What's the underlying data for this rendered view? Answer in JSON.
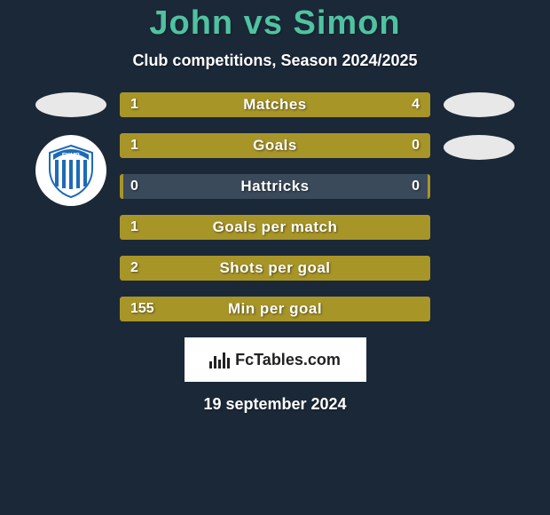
{
  "title": "John vs Simon",
  "subtitle": "Club competitions, Season 2024/2025",
  "footer_logo_text": "FcTables.com",
  "date": "19 september 2024",
  "colors": {
    "background": "#1b2838",
    "title": "#4fc3a1",
    "bar_fill": "#a89528",
    "bar_bg": "#3a4a5a",
    "text": "#ffffff",
    "footer_bg": "#ffffff",
    "footer_text": "#222222",
    "ellipse": "#e8e8e8",
    "badge_blue": "#1e6bb8",
    "badge_white": "#ffffff"
  },
  "left_badges": {
    "ellipse": true,
    "club": "FKMB"
  },
  "right_badges": {
    "ellipse1": true,
    "ellipse2": true
  },
  "stats": [
    {
      "label": "Matches",
      "left_val": "1",
      "right_val": "4",
      "left_pct": 20,
      "right_pct": 80
    },
    {
      "label": "Goals",
      "left_val": "1",
      "right_val": "0",
      "left_pct": 75,
      "right_pct": 25
    },
    {
      "label": "Hattricks",
      "left_val": "0",
      "right_val": "0",
      "left_pct": 1,
      "right_pct": 1
    },
    {
      "label": "Goals per match",
      "left_val": "1",
      "right_val": "",
      "left_pct": 100,
      "right_pct": 0
    },
    {
      "label": "Shots per goal",
      "left_val": "2",
      "right_val": "",
      "left_pct": 100,
      "right_pct": 0
    },
    {
      "label": "Min per goal",
      "left_val": "155",
      "right_val": "",
      "left_pct": 100,
      "right_pct": 0
    }
  ]
}
